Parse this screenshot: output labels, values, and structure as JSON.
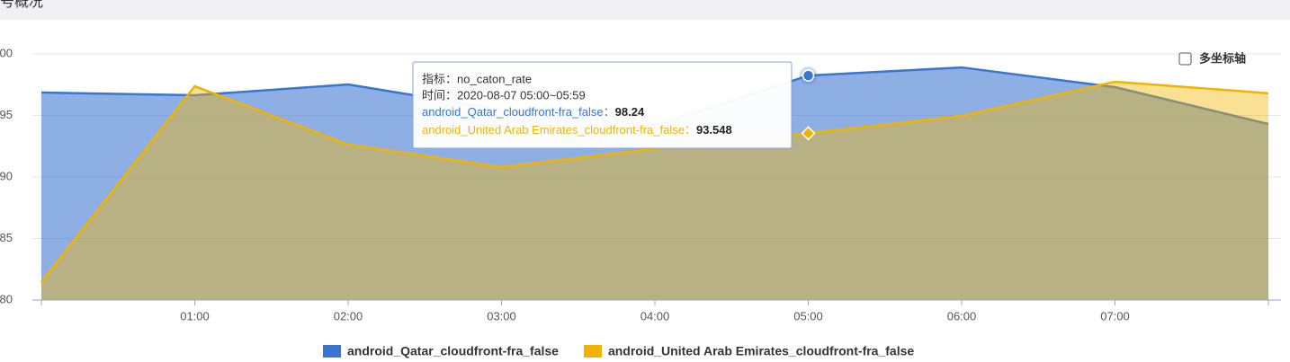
{
  "header": {
    "title": "号概况"
  },
  "chart_data": {
    "type": "area",
    "categories": [
      null,
      "01:00",
      "02:00",
      "03:00",
      "04:00",
      "05:00",
      "06:00",
      "07:00",
      null
    ],
    "series": [
      {
        "name": "android_Qatar_cloudfront-fra_false",
        "color": "#3a75d0",
        "values": [
          96.86,
          96.64,
          97.52,
          95.47,
          94.16,
          98.24,
          98.9,
          97.3,
          94.3
        ]
      },
      {
        "name": "android_United Arab Emirates_cloudfront-fra_false",
        "color": "#f0b400",
        "values": [
          81.46,
          97.37,
          92.63,
          90.8,
          92.3,
          93.548,
          94.96,
          97.74,
          96.8
        ]
      }
    ],
    "ylim": [
      80,
      100
    ],
    "yticks": [
      80,
      85,
      90,
      95,
      100
    ],
    "grid": true,
    "tooltip": {
      "metric": "指标：no_caton_rate",
      "time": "时间：2020-08-07 05:00~05:59",
      "separator": "：",
      "index": 5
    },
    "checkbox": "多坐标轴"
  }
}
